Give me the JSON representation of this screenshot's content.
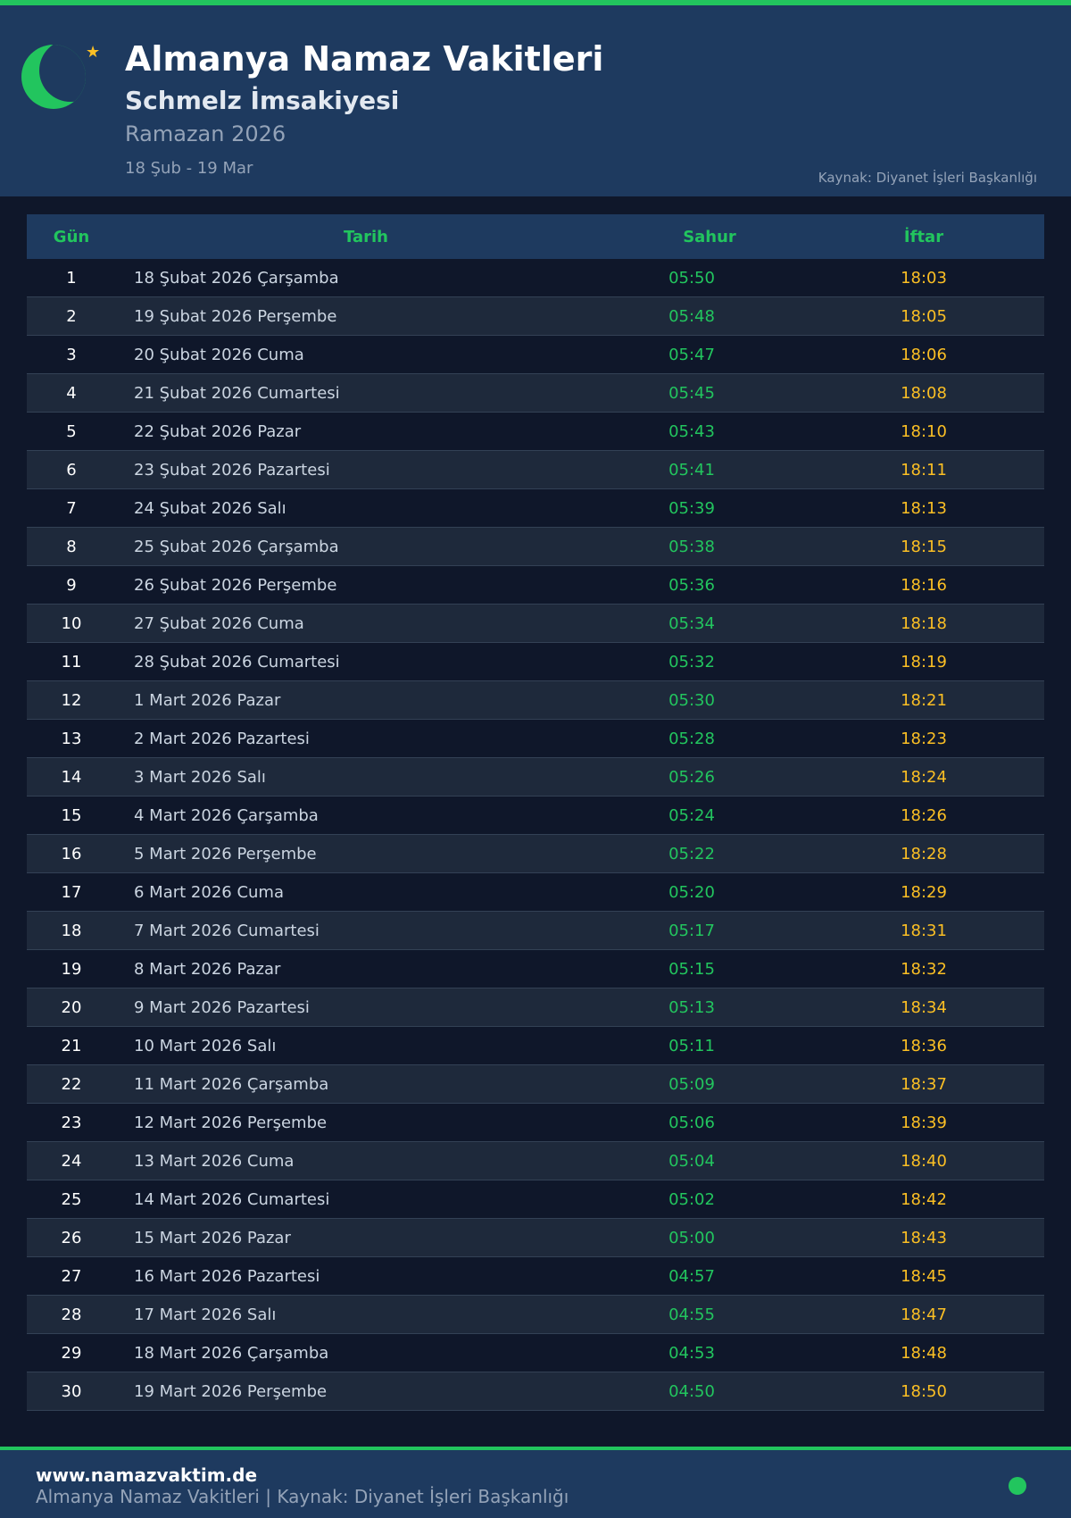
{
  "header": {
    "title": "Almanya Namaz Vakitleri",
    "subtitle": "Schmelz İmsakiyesi",
    "ramazan": "Ramazan 2026",
    "range": "18 Şub - 19 Mar",
    "source": "Kaynak: Diyanet İşleri Başkanlığı"
  },
  "table": {
    "columns": [
      "Gün",
      "Tarih",
      "Sahur",
      "İftar"
    ],
    "rows": [
      [
        "1",
        "18 Şubat 2026 Çarşamba",
        "05:50",
        "18:03"
      ],
      [
        "2",
        "19 Şubat 2026 Perşembe",
        "05:48",
        "18:05"
      ],
      [
        "3",
        "20 Şubat 2026 Cuma",
        "05:47",
        "18:06"
      ],
      [
        "4",
        "21 Şubat 2026 Cumartesi",
        "05:45",
        "18:08"
      ],
      [
        "5",
        "22 Şubat 2026 Pazar",
        "05:43",
        "18:10"
      ],
      [
        "6",
        "23 Şubat 2026 Pazartesi",
        "05:41",
        "18:11"
      ],
      [
        "7",
        "24 Şubat 2026 Salı",
        "05:39",
        "18:13"
      ],
      [
        "8",
        "25 Şubat 2026 Çarşamba",
        "05:38",
        "18:15"
      ],
      [
        "9",
        "26 Şubat 2026 Perşembe",
        "05:36",
        "18:16"
      ],
      [
        "10",
        "27 Şubat 2026 Cuma",
        "05:34",
        "18:18"
      ],
      [
        "11",
        "28 Şubat 2026 Cumartesi",
        "05:32",
        "18:19"
      ],
      [
        "12",
        "1 Mart 2026 Pazar",
        "05:30",
        "18:21"
      ],
      [
        "13",
        "2 Mart 2026 Pazartesi",
        "05:28",
        "18:23"
      ],
      [
        "14",
        "3 Mart 2026 Salı",
        "05:26",
        "18:24"
      ],
      [
        "15",
        "4 Mart 2026 Çarşamba",
        "05:24",
        "18:26"
      ],
      [
        "16",
        "5 Mart 2026 Perşembe",
        "05:22",
        "18:28"
      ],
      [
        "17",
        "6 Mart 2026 Cuma",
        "05:20",
        "18:29"
      ],
      [
        "18",
        "7 Mart 2026 Cumartesi",
        "05:17",
        "18:31"
      ],
      [
        "19",
        "8 Mart 2026 Pazar",
        "05:15",
        "18:32"
      ],
      [
        "20",
        "9 Mart 2026 Pazartesi",
        "05:13",
        "18:34"
      ],
      [
        "21",
        "10 Mart 2026 Salı",
        "05:11",
        "18:36"
      ],
      [
        "22",
        "11 Mart 2026 Çarşamba",
        "05:09",
        "18:37"
      ],
      [
        "23",
        "12 Mart 2026 Perşembe",
        "05:06",
        "18:39"
      ],
      [
        "24",
        "13 Mart 2026 Cuma",
        "05:04",
        "18:40"
      ],
      [
        "25",
        "14 Mart 2026 Cumartesi",
        "05:02",
        "18:42"
      ],
      [
        "26",
        "15 Mart 2026 Pazar",
        "05:00",
        "18:43"
      ],
      [
        "27",
        "16 Mart 2026 Pazartesi",
        "04:57",
        "18:45"
      ],
      [
        "28",
        "17 Mart 2026 Salı",
        "04:55",
        "18:47"
      ],
      [
        "29",
        "18 Mart 2026 Çarşamba",
        "04:53",
        "18:48"
      ],
      [
        "30",
        "19 Mart 2026 Perşembe",
        "04:50",
        "18:50"
      ]
    ]
  },
  "footer": {
    "site": "www.namazvaktim.de",
    "source": "Almanya Namaz Vakitleri | Kaynak: Diyanet İşleri Başkanlığı"
  },
  "icons": {
    "logo": "crescent-moon-icon",
    "star": "star-icon",
    "status": "status-dot-icon"
  },
  "colors": {
    "accent": "#22c55e",
    "iftar": "#fbbf24",
    "header_bg": "#1e3a5f",
    "page_bg": "#0f172a"
  }
}
